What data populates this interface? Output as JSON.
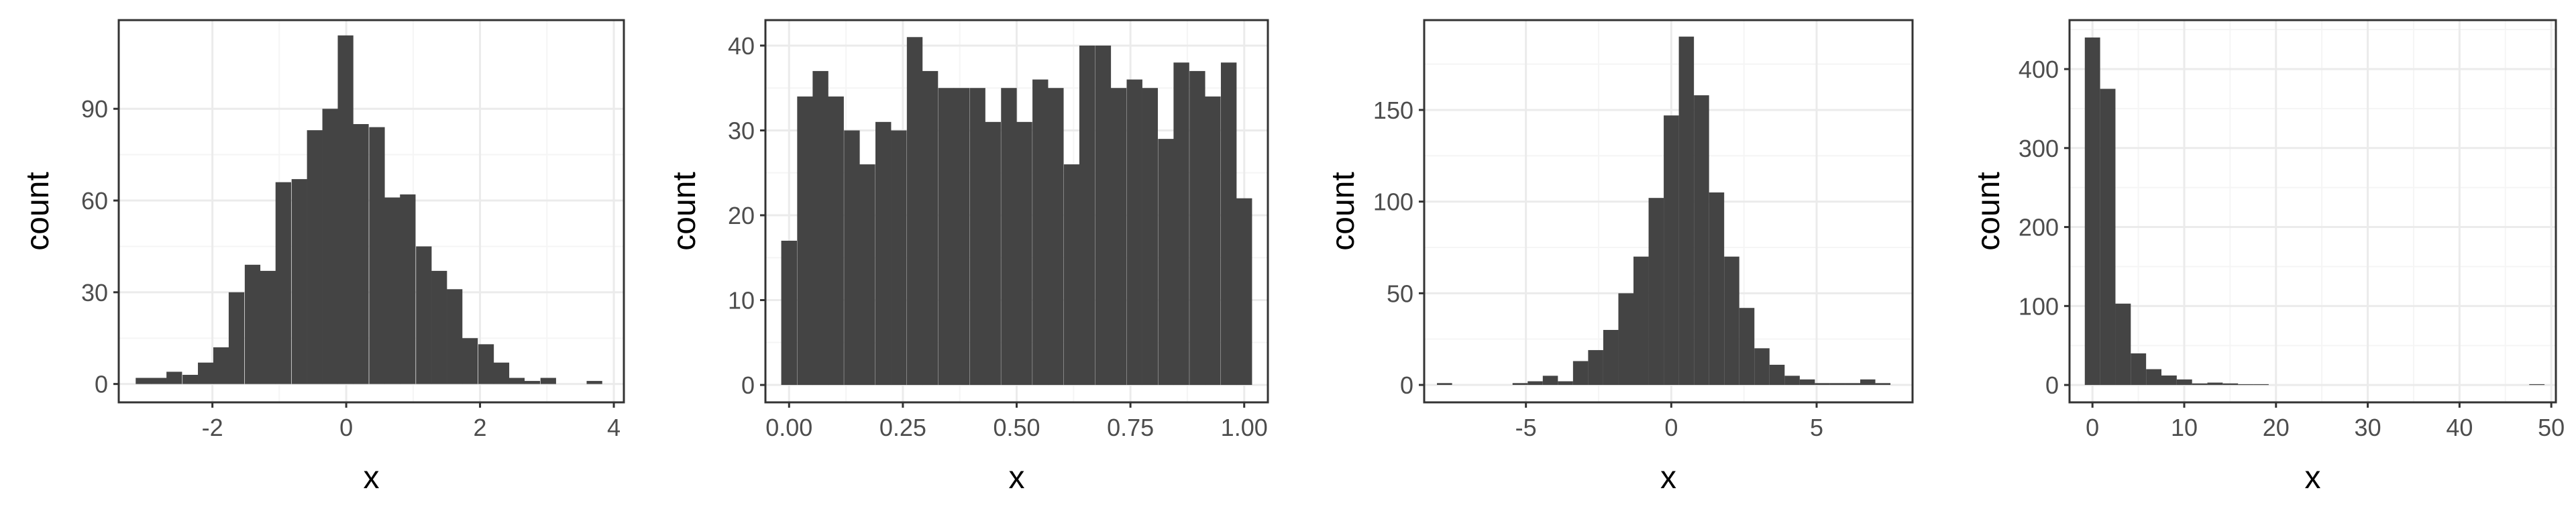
{
  "theme": {
    "panel_background": "#ffffff",
    "panel_border": "#333333",
    "grid_major": "#ebebeb",
    "grid_minor": "#f5f5f5",
    "bar_fill": "#444444",
    "tick_color": "#333333",
    "text_color": "#4d4d4d"
  },
  "chart_data": [
    {
      "type": "bar",
      "style": "histogram",
      "xlabel": "x",
      "ylabel": "count",
      "grid": true,
      "xlim": [
        -3.4,
        4.15
      ],
      "ylim": [
        -6,
        119
      ],
      "xticks": [
        -2,
        0,
        2,
        4
      ],
      "xtick_labels": [
        "-2",
        "0",
        "2",
        "4"
      ],
      "yticks": [
        0,
        30,
        60,
        90
      ],
      "ytick_labels": [
        "0",
        "30",
        "60",
        "90"
      ],
      "bin_width": 0.233,
      "x": [
        -3.03,
        -2.8,
        -2.57,
        -2.33,
        -2.1,
        -1.87,
        -1.64,
        -1.4,
        -1.17,
        -0.94,
        -0.7,
        -0.47,
        -0.24,
        -0.01,
        0.22,
        0.46,
        0.69,
        0.92,
        1.16,
        1.39,
        1.62,
        1.85,
        2.09,
        2.32,
        2.55,
        2.78,
        3.02,
        3.25,
        3.48,
        3.71
      ],
      "values": [
        2,
        2,
        4,
        3,
        7,
        12,
        30,
        39,
        37,
        66,
        67,
        83,
        90,
        114,
        85,
        84,
        61,
        62,
        45,
        37,
        31,
        15,
        13,
        7,
        2,
        1,
        2,
        0,
        0,
        1
      ]
    },
    {
      "type": "bar",
      "style": "histogram",
      "xlabel": "x",
      "ylabel": "count",
      "grid": true,
      "xlim": [
        -0.052,
        1.052
      ],
      "ylim": [
        -2.05,
        43
      ],
      "xticks": [
        0,
        0.25,
        0.5,
        0.75,
        1.0
      ],
      "xtick_labels": [
        "0.00",
        "0.25",
        "0.50",
        "0.75",
        "1.00"
      ],
      "yticks": [
        0,
        10,
        20,
        30,
        40
      ],
      "ytick_labels": [
        "0",
        "10",
        "20",
        "30",
        "40"
      ],
      "bin_width": 0.0345,
      "x": [
        0.0,
        0.035,
        0.069,
        0.103,
        0.138,
        0.172,
        0.207,
        0.241,
        0.276,
        0.31,
        0.345,
        0.379,
        0.414,
        0.448,
        0.483,
        0.517,
        0.552,
        0.586,
        0.621,
        0.655,
        0.69,
        0.724,
        0.759,
        0.793,
        0.828,
        0.862,
        0.897,
        0.931,
        0.966,
        1.0
      ],
      "values": [
        17,
        34,
        37,
        34,
        30,
        26,
        31,
        30,
        41,
        37,
        35,
        35,
        35,
        31,
        35,
        31,
        36,
        35,
        26,
        40,
        40,
        35,
        36,
        35,
        29,
        38,
        37,
        34,
        38,
        22
      ]
    },
    {
      "type": "bar",
      "style": "histogram",
      "xlabel": "x",
      "ylabel": "count",
      "grid": true,
      "xlim": [
        -8.5,
        8.3
      ],
      "ylim": [
        -9.5,
        199
      ],
      "xticks": [
        -5,
        0,
        5
      ],
      "xtick_labels": [
        "-5",
        "0",
        "5"
      ],
      "yticks": [
        0,
        50,
        100,
        150
      ],
      "yminor": [
        25,
        75,
        125,
        175
      ],
      "ytick_labels": [
        "0",
        "50",
        "100",
        "150"
      ],
      "bin_width": 0.52,
      "x": [
        -7.8,
        -7.28,
        -6.76,
        -6.24,
        -5.72,
        -5.2,
        -4.68,
        -4.16,
        -3.64,
        -3.12,
        -2.6,
        -2.08,
        -1.56,
        -1.04,
        -0.52,
        0.0,
        0.52,
        1.04,
        1.56,
        2.08,
        2.6,
        3.12,
        3.64,
        4.16,
        4.68,
        5.2,
        5.72,
        6.24,
        6.76,
        7.28
      ],
      "values": [
        1,
        0,
        0,
        0,
        0,
        1,
        2,
        5,
        2,
        13,
        19,
        30,
        50,
        70,
        102,
        147,
        190,
        158,
        105,
        70,
        42,
        20,
        11,
        5,
        3,
        1,
        1,
        1,
        3,
        1
      ]
    },
    {
      "type": "bar",
      "style": "histogram",
      "xlabel": "x",
      "ylabel": "count",
      "grid": true,
      "xlim": [
        -2.5,
        50.5
      ],
      "ylim": [
        -22,
        462
      ],
      "xticks": [
        0,
        10,
        20,
        30,
        40,
        50
      ],
      "xtick_labels": [
        "0",
        "10",
        "20",
        "30",
        "40",
        "50"
      ],
      "yticks": [
        0,
        100,
        200,
        300,
        400
      ],
      "yminor": [
        50,
        150,
        250,
        350,
        450
      ],
      "ytick_labels": [
        "0",
        "100",
        "200",
        "300",
        "400"
      ],
      "bin_width": 1.67,
      "x": [
        0.0,
        1.67,
        3.34,
        5.01,
        6.68,
        8.35,
        10.02,
        11.69,
        13.36,
        15.03,
        16.7,
        18.37,
        20.04,
        21.71,
        23.38,
        25.05,
        26.72,
        28.39,
        30.06,
        31.73,
        33.4,
        35.07,
        36.74,
        38.41,
        40.08,
        41.75,
        43.42,
        45.09,
        46.76,
        48.43
      ],
      "values": [
        440,
        375,
        103,
        40,
        20,
        12,
        7,
        2,
        3,
        2,
        1,
        1,
        0,
        0,
        0,
        0,
        0,
        0,
        0,
        0,
        0,
        0,
        0,
        0,
        0,
        0,
        0,
        0,
        0,
        1
      ]
    }
  ]
}
